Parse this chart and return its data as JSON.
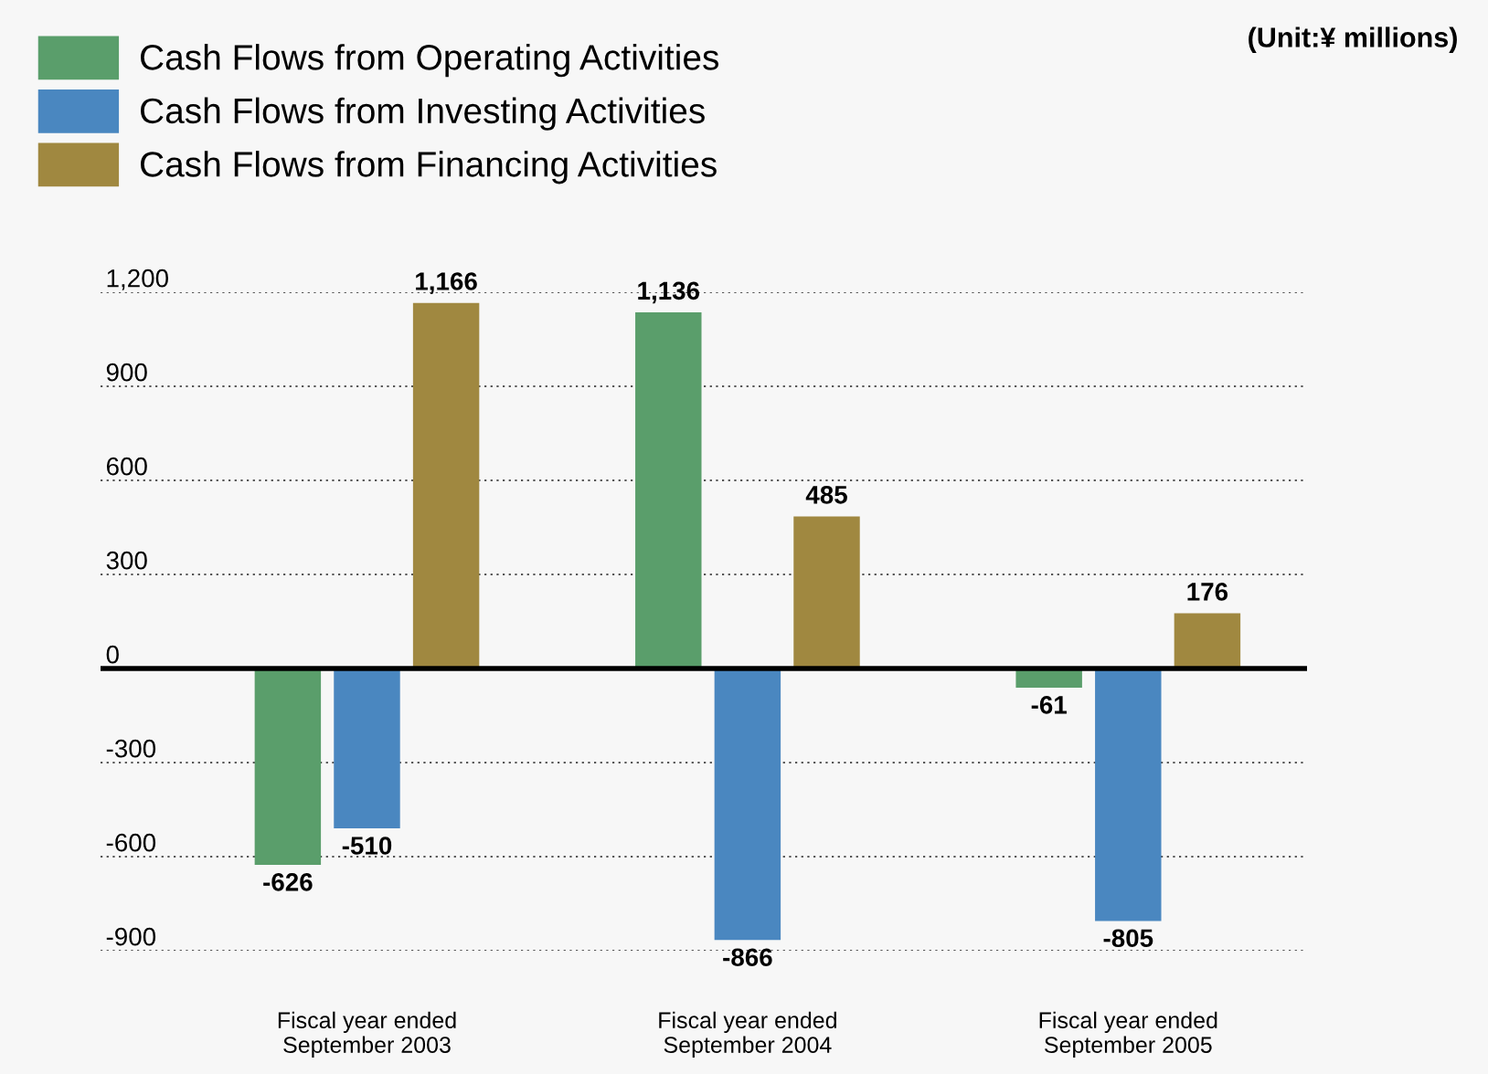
{
  "chart_data": {
    "type": "bar",
    "categories": [
      "Fiscal year ended\nSeptember 2003",
      "Fiscal year ended\nSeptember 2004",
      "Fiscal year ended\nSeptember 2005"
    ],
    "series": [
      {
        "name": "Cash Flows from Operating Activities",
        "color": "#5a9e6b",
        "values": [
          -626,
          1136,
          -61
        ],
        "value_labels": [
          "-626",
          "1,136",
          "-61"
        ]
      },
      {
        "name": "Cash Flows from Investing Activities",
        "color": "#4a87c0",
        "values": [
          -510,
          -866,
          -805
        ],
        "value_labels": [
          "-510",
          "-866",
          "-805"
        ]
      },
      {
        "name": "Cash Flows from Financing Activities",
        "color": "#a08840",
        "values": [
          1166,
          485,
          176
        ],
        "value_labels": [
          "1,166",
          "485",
          "176"
        ]
      }
    ],
    "ylim": [
      -900,
      1200
    ],
    "yticks": [
      {
        "value": -900,
        "label": "-900"
      },
      {
        "value": -600,
        "label": "-600"
      },
      {
        "value": -300,
        "label": "-300"
      },
      0,
      300,
      600,
      900,
      {
        "value": 1200,
        "label": "1,200"
      }
    ],
    "grid": "y",
    "legend": "top left",
    "ref_lines": [
      {
        "axis": "y",
        "value": 0,
        "color": "#000000",
        "line_style": "solid"
      }
    ],
    "annotations": [
      "(Unit:¥ millions)"
    ]
  }
}
